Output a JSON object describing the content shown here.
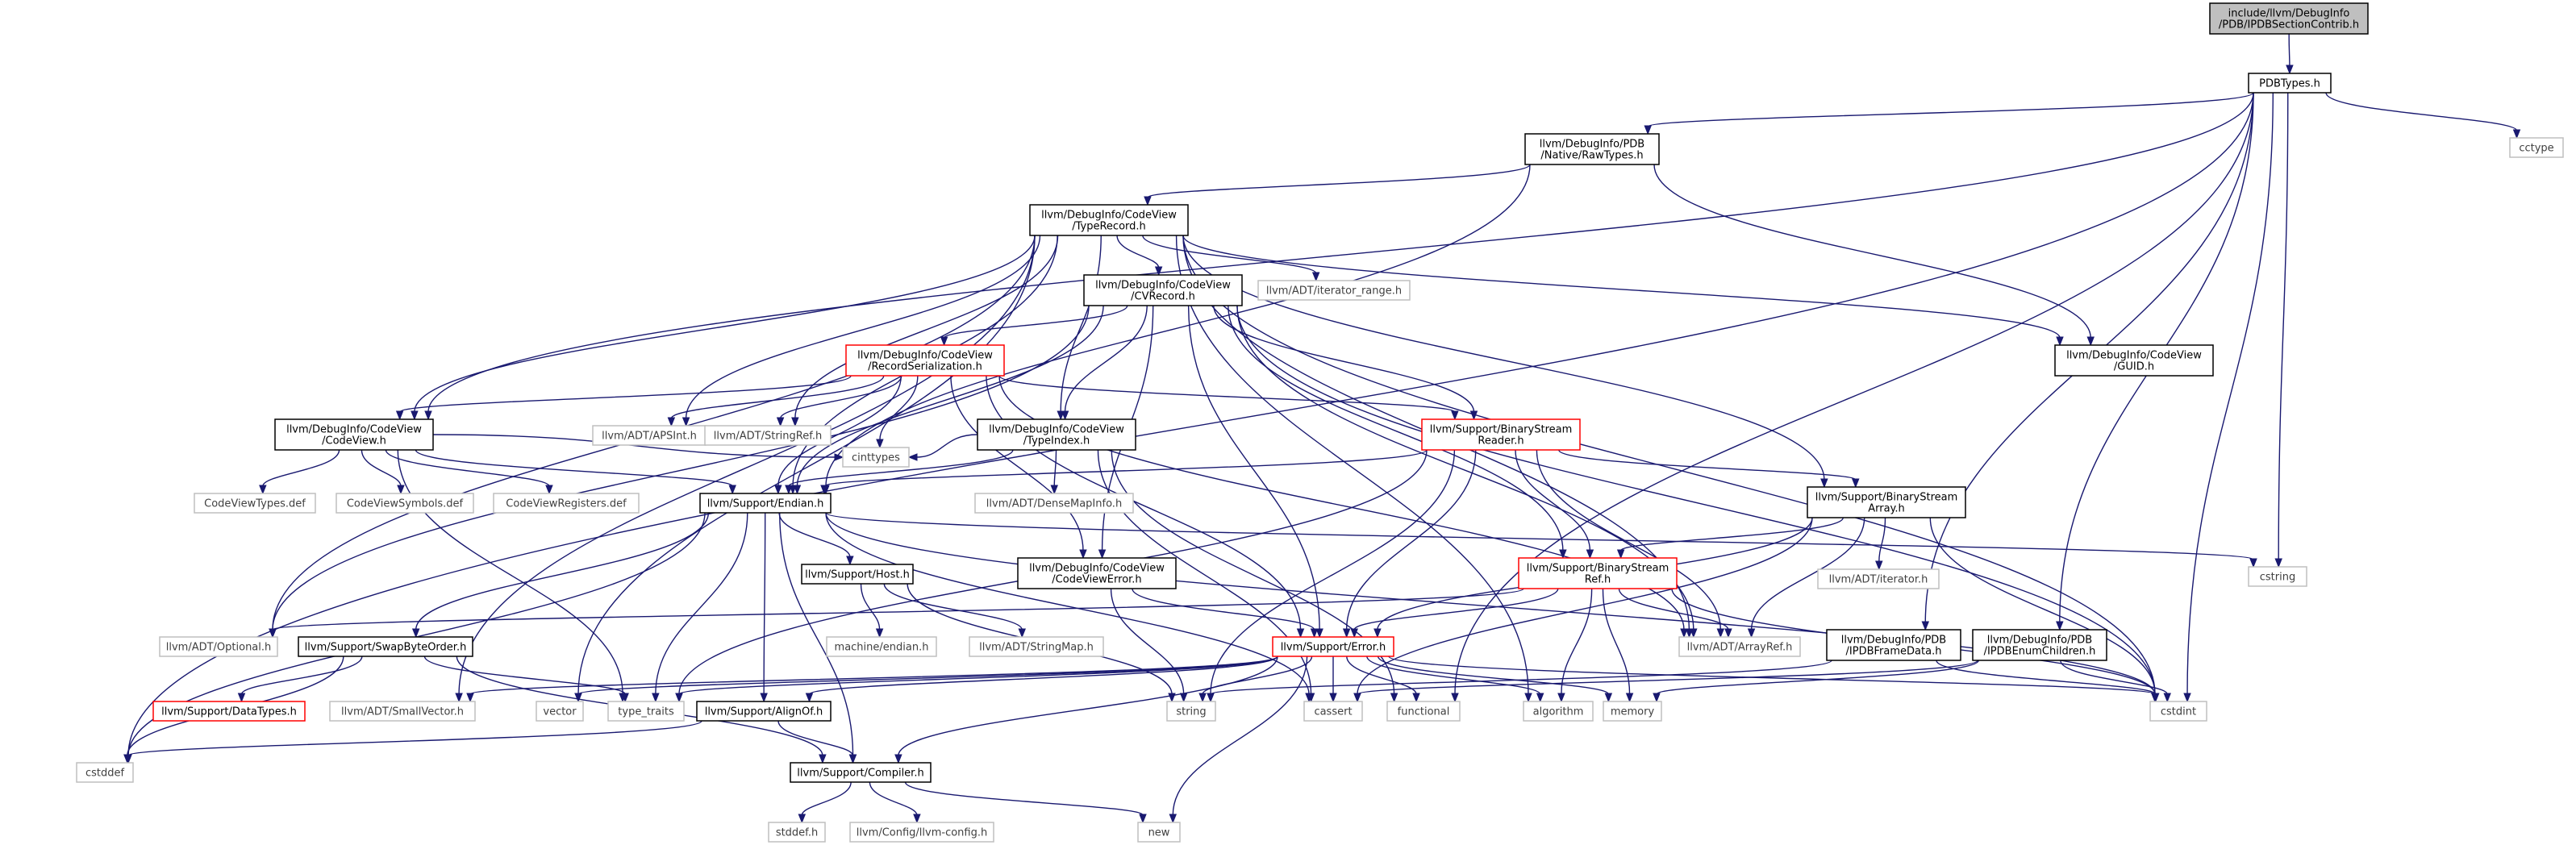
{
  "colors": {
    "edge": "#191970",
    "box_black": "#000000",
    "box_red": "#ff0000",
    "box_gray": "#bfbfbf",
    "root_fill": "#bfbfbf"
  },
  "nodes": [
    {
      "id": "root",
      "lines": [
        "include/llvm/DebugInfo",
        "/PDB/IPDBSectionContrib.h"
      ],
      "style": "root"
    },
    {
      "id": "pdbtypes",
      "lines": [
        "PDBTypes.h"
      ],
      "style": "black"
    },
    {
      "id": "rawtypes",
      "lines": [
        "llvm/DebugInfo/PDB",
        "/Native/RawTypes.h"
      ],
      "style": "black"
    },
    {
      "id": "cctype",
      "lines": [
        "cctype"
      ],
      "style": "gray"
    },
    {
      "id": "typerecord",
      "lines": [
        "llvm/DebugInfo/CodeView",
        "/TypeRecord.h"
      ],
      "style": "black"
    },
    {
      "id": "cvrecord",
      "lines": [
        "llvm/DebugInfo/CodeView",
        "/CVRecord.h"
      ],
      "style": "black"
    },
    {
      "id": "iterrange",
      "lines": [
        "llvm/ADT/iterator_range.h"
      ],
      "style": "gray"
    },
    {
      "id": "guid",
      "lines": [
        "llvm/DebugInfo/CodeView",
        "/GUID.h"
      ],
      "style": "black"
    },
    {
      "id": "recser",
      "lines": [
        "llvm/DebugInfo/CodeView",
        "/RecordSerialization.h"
      ],
      "style": "red"
    },
    {
      "id": "codeview",
      "lines": [
        "llvm/DebugInfo/CodeView",
        "/CodeView.h"
      ],
      "style": "black"
    },
    {
      "id": "apsint",
      "lines": [
        "llvm/ADT/APSInt.h"
      ],
      "style": "gray"
    },
    {
      "id": "stringref",
      "lines": [
        "llvm/ADT/StringRef.h"
      ],
      "style": "gray"
    },
    {
      "id": "typeindex",
      "lines": [
        "llvm/DebugInfo/CodeView",
        "/TypeIndex.h"
      ],
      "style": "black"
    },
    {
      "id": "bsreader",
      "lines": [
        "llvm/Support/BinaryStream",
        "Reader.h"
      ],
      "style": "red"
    },
    {
      "id": "cvtypesdef",
      "lines": [
        "CodeViewTypes.def"
      ],
      "style": "gray"
    },
    {
      "id": "cvsymsdef",
      "lines": [
        "CodeViewSymbols.def"
      ],
      "style": "gray"
    },
    {
      "id": "cvregsdef",
      "lines": [
        "CodeViewRegisters.def"
      ],
      "style": "gray"
    },
    {
      "id": "endian",
      "lines": [
        "llvm/Support/Endian.h"
      ],
      "style": "black"
    },
    {
      "id": "cinttypes",
      "lines": [
        "cinttypes"
      ],
      "style": "gray"
    },
    {
      "id": "densemapinfo",
      "lines": [
        "llvm/ADT/DenseMapInfo.h"
      ],
      "style": "gray"
    },
    {
      "id": "bsarray",
      "lines": [
        "llvm/Support/BinaryStream",
        "Array.h"
      ],
      "style": "black"
    },
    {
      "id": "host",
      "lines": [
        "llvm/Support/Host.h"
      ],
      "style": "black"
    },
    {
      "id": "cverror",
      "lines": [
        "llvm/DebugInfo/CodeView",
        "/CodeViewError.h"
      ],
      "style": "black"
    },
    {
      "id": "bsref",
      "lines": [
        "llvm/Support/BinaryStream",
        "Ref.h"
      ],
      "style": "red"
    },
    {
      "id": "iterator",
      "lines": [
        "llvm/ADT/iterator.h"
      ],
      "style": "gray"
    },
    {
      "id": "cstring",
      "lines": [
        "cstring"
      ],
      "style": "gray"
    },
    {
      "id": "optional",
      "lines": [
        "llvm/ADT/Optional.h"
      ],
      "style": "gray"
    },
    {
      "id": "machendian",
      "lines": [
        "machine/endian.h"
      ],
      "style": "gray"
    },
    {
      "id": "stringmap",
      "lines": [
        "llvm/ADT/StringMap.h"
      ],
      "style": "gray"
    },
    {
      "id": "arrayref",
      "lines": [
        "llvm/ADT/ArrayRef.h"
      ],
      "style": "gray"
    },
    {
      "id": "framedata",
      "lines": [
        "llvm/DebugInfo/PDB",
        "/IPDBFrameData.h"
      ],
      "style": "black"
    },
    {
      "id": "enumchildren",
      "lines": [
        "llvm/DebugInfo/PDB",
        "/IPDBEnumChildren.h"
      ],
      "style": "black"
    },
    {
      "id": "swapbyte",
      "lines": [
        "llvm/Support/SwapByteOrder.h"
      ],
      "style": "black"
    },
    {
      "id": "error",
      "lines": [
        "llvm/Support/Error.h"
      ],
      "style": "red"
    },
    {
      "id": "datatypes",
      "lines": [
        "llvm/Support/DataTypes.h"
      ],
      "style": "red"
    },
    {
      "id": "smallvector",
      "lines": [
        "llvm/ADT/SmallVector.h"
      ],
      "style": "gray"
    },
    {
      "id": "vector",
      "lines": [
        "vector"
      ],
      "style": "gray"
    },
    {
      "id": "typetraits",
      "lines": [
        "type_traits"
      ],
      "style": "gray"
    },
    {
      "id": "alignof",
      "lines": [
        "llvm/Support/AlignOf.h"
      ],
      "style": "black"
    },
    {
      "id": "string",
      "lines": [
        "string"
      ],
      "style": "gray"
    },
    {
      "id": "cassert",
      "lines": [
        "cassert"
      ],
      "style": "gray"
    },
    {
      "id": "functional",
      "lines": [
        "functional"
      ],
      "style": "gray"
    },
    {
      "id": "algorithm",
      "lines": [
        "algorithm"
      ],
      "style": "gray"
    },
    {
      "id": "memory",
      "lines": [
        "memory"
      ],
      "style": "gray"
    },
    {
      "id": "cstdint",
      "lines": [
        "cstdint"
      ],
      "style": "gray"
    },
    {
      "id": "cstddef",
      "lines": [
        "cstddef"
      ],
      "style": "gray"
    },
    {
      "id": "compiler",
      "lines": [
        "llvm/Support/Compiler.h"
      ],
      "style": "black"
    },
    {
      "id": "stddef",
      "lines": [
        "stddef.h"
      ],
      "style": "gray"
    },
    {
      "id": "llvmconfig",
      "lines": [
        "llvm/Config/llvm-config.h"
      ],
      "style": "gray"
    },
    {
      "id": "new",
      "lines": [
        "new"
      ],
      "style": "gray"
    }
  ],
  "edges": [
    [
      "root",
      "pdbtypes"
    ],
    [
      "pdbtypes",
      "rawtypes"
    ],
    [
      "pdbtypes",
      "cctype"
    ],
    [
      "pdbtypes",
      "cstddef"
    ],
    [
      "pdbtypes",
      "codeview"
    ],
    [
      "pdbtypes",
      "functional"
    ],
    [
      "pdbtypes",
      "cstring"
    ],
    [
      "pdbtypes",
      "framedata"
    ],
    [
      "pdbtypes",
      "enumchildren"
    ],
    [
      "pdbtypes",
      "cstdint"
    ],
    [
      "rawtypes",
      "typerecord"
    ],
    [
      "rawtypes",
      "guid"
    ],
    [
      "rawtypes",
      "endian"
    ],
    [
      "typerecord",
      "cvrecord"
    ],
    [
      "typerecord",
      "iterrange"
    ],
    [
      "typerecord",
      "guid"
    ],
    [
      "typerecord",
      "codeview"
    ],
    [
      "typerecord",
      "typeindex"
    ],
    [
      "typerecord",
      "apsint"
    ],
    [
      "typerecord",
      "stringref"
    ],
    [
      "typerecord",
      "endian"
    ],
    [
      "typerecord",
      "optional"
    ],
    [
      "typerecord",
      "arrayref"
    ],
    [
      "typerecord",
      "bsarray"
    ],
    [
      "typerecord",
      "algorithm"
    ],
    [
      "typerecord",
      "cstdint"
    ],
    [
      "typerecord",
      "smallvector"
    ],
    [
      "typerecord",
      "vector"
    ],
    [
      "cvrecord",
      "recser"
    ],
    [
      "cvrecord",
      "typeindex"
    ],
    [
      "cvrecord",
      "bsreader"
    ],
    [
      "cvrecord",
      "cverror"
    ],
    [
      "cvrecord",
      "endian"
    ],
    [
      "cvrecord",
      "optional"
    ],
    [
      "cvrecord",
      "error"
    ],
    [
      "cvrecord",
      "bsref"
    ],
    [
      "cvrecord",
      "arrayref"
    ],
    [
      "cvrecord",
      "cstdint"
    ],
    [
      "recser",
      "codeview"
    ],
    [
      "recser",
      "apsint"
    ],
    [
      "recser",
      "stringref"
    ],
    [
      "recser",
      "bsreader"
    ],
    [
      "recser",
      "cinttypes"
    ],
    [
      "recser",
      "endian"
    ],
    [
      "recser",
      "cverror"
    ],
    [
      "recser",
      "error"
    ],
    [
      "recser",
      "arrayref"
    ],
    [
      "codeview",
      "cvtypesdef"
    ],
    [
      "codeview",
      "cvsymsdef"
    ],
    [
      "codeview",
      "cvregsdef"
    ],
    [
      "codeview",
      "endian"
    ],
    [
      "codeview",
      "cinttypes"
    ],
    [
      "codeview",
      "typetraits"
    ],
    [
      "typeindex",
      "endian"
    ],
    [
      "typeindex",
      "densemapinfo"
    ],
    [
      "typeindex",
      "cinttypes"
    ],
    [
      "typeindex",
      "cassert"
    ],
    [
      "typeindex",
      "functional"
    ],
    [
      "bsreader",
      "endian"
    ],
    [
      "bsreader",
      "bsarray"
    ],
    [
      "bsreader",
      "bsref"
    ],
    [
      "bsreader",
      "error"
    ],
    [
      "bsreader",
      "arrayref"
    ],
    [
      "bsreader",
      "string"
    ],
    [
      "bsreader",
      "typetraits"
    ],
    [
      "endian",
      "host"
    ],
    [
      "endian",
      "swapbyte"
    ],
    [
      "endian",
      "alignof"
    ],
    [
      "endian",
      "compiler"
    ],
    [
      "endian",
      "cstddef"
    ],
    [
      "endian",
      "cstdint"
    ],
    [
      "endian",
      "typetraits"
    ],
    [
      "endian",
      "cassert"
    ],
    [
      "endian",
      "cstring"
    ],
    [
      "bsarray",
      "bsref"
    ],
    [
      "bsarray",
      "iterator"
    ],
    [
      "bsarray",
      "arrayref"
    ],
    [
      "bsarray",
      "error"
    ],
    [
      "bsarray",
      "cassert"
    ],
    [
      "bsarray",
      "cstdint"
    ],
    [
      "host",
      "machendian"
    ],
    [
      "host",
      "stringmap"
    ],
    [
      "host",
      "string"
    ],
    [
      "cverror",
      "error"
    ],
    [
      "cverror",
      "string"
    ],
    [
      "bsref",
      "optional"
    ],
    [
      "bsref",
      "arrayref"
    ],
    [
      "bsref",
      "error"
    ],
    [
      "bsref",
      "algorithm"
    ],
    [
      "bsref",
      "memory"
    ],
    [
      "bsref",
      "cstdint"
    ],
    [
      "framedata",
      "string"
    ],
    [
      "framedata",
      "cstdint"
    ],
    [
      "enumchildren",
      "cassert"
    ],
    [
      "enumchildren",
      "cstdint"
    ],
    [
      "enumchildren",
      "memory"
    ],
    [
      "swapbyte",
      "datatypes"
    ],
    [
      "swapbyte",
      "compiler"
    ],
    [
      "swapbyte",
      "cstddef"
    ],
    [
      "swapbyte",
      "typetraits"
    ],
    [
      "error",
      "compiler"
    ],
    [
      "error",
      "alignof"
    ],
    [
      "error",
      "smallvector"
    ],
    [
      "error",
      "vector"
    ],
    [
      "error",
      "typetraits"
    ],
    [
      "error",
      "string"
    ],
    [
      "error",
      "cassert"
    ],
    [
      "error",
      "functional"
    ],
    [
      "error",
      "algorithm"
    ],
    [
      "error",
      "memory"
    ],
    [
      "error",
      "cstdint"
    ],
    [
      "error",
      "new"
    ],
    [
      "alignof",
      "compiler"
    ],
    [
      "alignof",
      "cstddef"
    ],
    [
      "compiler",
      "stddef"
    ],
    [
      "compiler",
      "llvmconfig"
    ],
    [
      "compiler",
      "new"
    ]
  ]
}
